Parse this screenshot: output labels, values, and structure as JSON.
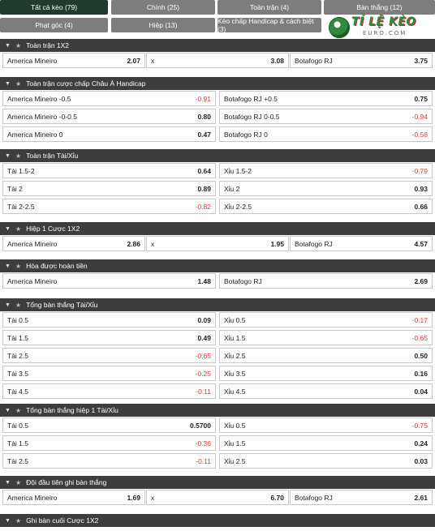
{
  "tabs": [
    {
      "label": "Tất cả kèo (79)"
    },
    {
      "label": "Chính (25)"
    },
    {
      "label": "Toàn trận (4)"
    },
    {
      "label": "Bàn thắng (12)"
    },
    {
      "label": "Phạt góc (4)"
    },
    {
      "label": "Hiệp (13)"
    },
    {
      "label": "Kèo chấp Handicap & cách biệt (3)"
    }
  ],
  "logo": {
    "text": "TỈ LỆ KÈO",
    "sub": "EURO.COM"
  },
  "sections": [
    {
      "title": "Toàn trận 1X2",
      "rows": [
        [
          {
            "label": "America Mineiro",
            "value": "2.07"
          },
          {
            "label": "x",
            "value": "3.08"
          },
          {
            "label": "Botafogo RJ",
            "value": "3.75"
          }
        ]
      ]
    },
    {
      "title": "Toàn trận cược chấp Châu Á Handicap",
      "rows": [
        [
          {
            "label": "America Mineiro -0.5",
            "value": "-0.91"
          },
          {
            "label": "Botafogo RJ +0.5",
            "value": "0.75"
          }
        ],
        [
          {
            "label": "America Mineiro -0-0.5",
            "value": "0.80"
          },
          {
            "label": "Botafogo RJ 0-0.5",
            "value": "-0.94"
          }
        ],
        [
          {
            "label": "America Mineiro 0",
            "value": "0.47"
          },
          {
            "label": "Botafogo RJ 0",
            "value": "-0.58"
          }
        ]
      ]
    },
    {
      "title": "Toàn trận Tài/Xỉu",
      "rows": [
        [
          {
            "label": "Tài 1.5-2",
            "value": "0.64"
          },
          {
            "label": "Xỉu 1.5-2",
            "value": "-0.79"
          }
        ],
        [
          {
            "label": "Tài 2",
            "value": "0.89"
          },
          {
            "label": "Xỉu 2",
            "value": "0.93"
          }
        ],
        [
          {
            "label": "Tài 2-2.5",
            "value": "-0.82"
          },
          {
            "label": "Xỉu 2-2.5",
            "value": "0.66"
          }
        ]
      ]
    },
    {
      "title": "Hiệp 1 Cược 1X2",
      "rows": [
        [
          {
            "label": "America Mineiro",
            "value": "2.86"
          },
          {
            "label": "x",
            "value": "1.95"
          },
          {
            "label": "Botafogo RJ",
            "value": "4.57"
          }
        ]
      ]
    },
    {
      "title": "Hòa được hoàn tiền",
      "rows": [
        [
          {
            "label": "America Mineiro",
            "value": "1.48"
          },
          {
            "label": "Botafogo RJ",
            "value": "2.69"
          }
        ]
      ]
    },
    {
      "title": "Tổng bàn thắng Tài/Xỉu",
      "rows": [
        [
          {
            "label": "Tài 0.5",
            "value": "0.09"
          },
          {
            "label": "Xỉu 0.5",
            "value": "-0.17"
          }
        ],
        [
          {
            "label": "Tài 1.5",
            "value": "0.49"
          },
          {
            "label": "Xỉu 1.5",
            "value": "-0.65"
          }
        ],
        [
          {
            "label": "Tài 2.5",
            "value": "-0.65"
          },
          {
            "label": "Xỉu 2.5",
            "value": "0.50"
          }
        ],
        [
          {
            "label": "Tài 3.5",
            "value": "-0.25"
          },
          {
            "label": "Xỉu 3.5",
            "value": "0.16"
          }
        ],
        [
          {
            "label": "Tài 4.5",
            "value": "-0.11"
          },
          {
            "label": "Xỉu 4.5",
            "value": "0.04"
          }
        ]
      ]
    },
    {
      "title": "Tổng bàn thắng hiệp 1 Tài/Xỉu",
      "rows": [
        [
          {
            "label": "Tài 0.5",
            "value": "0.5700"
          },
          {
            "label": "Xỉu 0.5",
            "value": "-0.75"
          }
        ],
        [
          {
            "label": "Tài 1.5",
            "value": "-0.36"
          },
          {
            "label": "Xỉu 1.5",
            "value": "0.24"
          }
        ],
        [
          {
            "label": "Tài 2.5",
            "value": "-0.11"
          },
          {
            "label": "Xỉu 2.5",
            "value": "0.03"
          }
        ]
      ]
    },
    {
      "title": "Đội đầu tiên ghi bàn thắng",
      "rows": [
        [
          {
            "label": "America Mineiro",
            "value": "1.69"
          },
          {
            "label": "x",
            "value": "6.70"
          },
          {
            "label": "Botafogo RJ",
            "value": "2.61"
          }
        ]
      ]
    },
    {
      "title": "Ghi bàn cuối Cược 1X2",
      "rows": []
    }
  ]
}
